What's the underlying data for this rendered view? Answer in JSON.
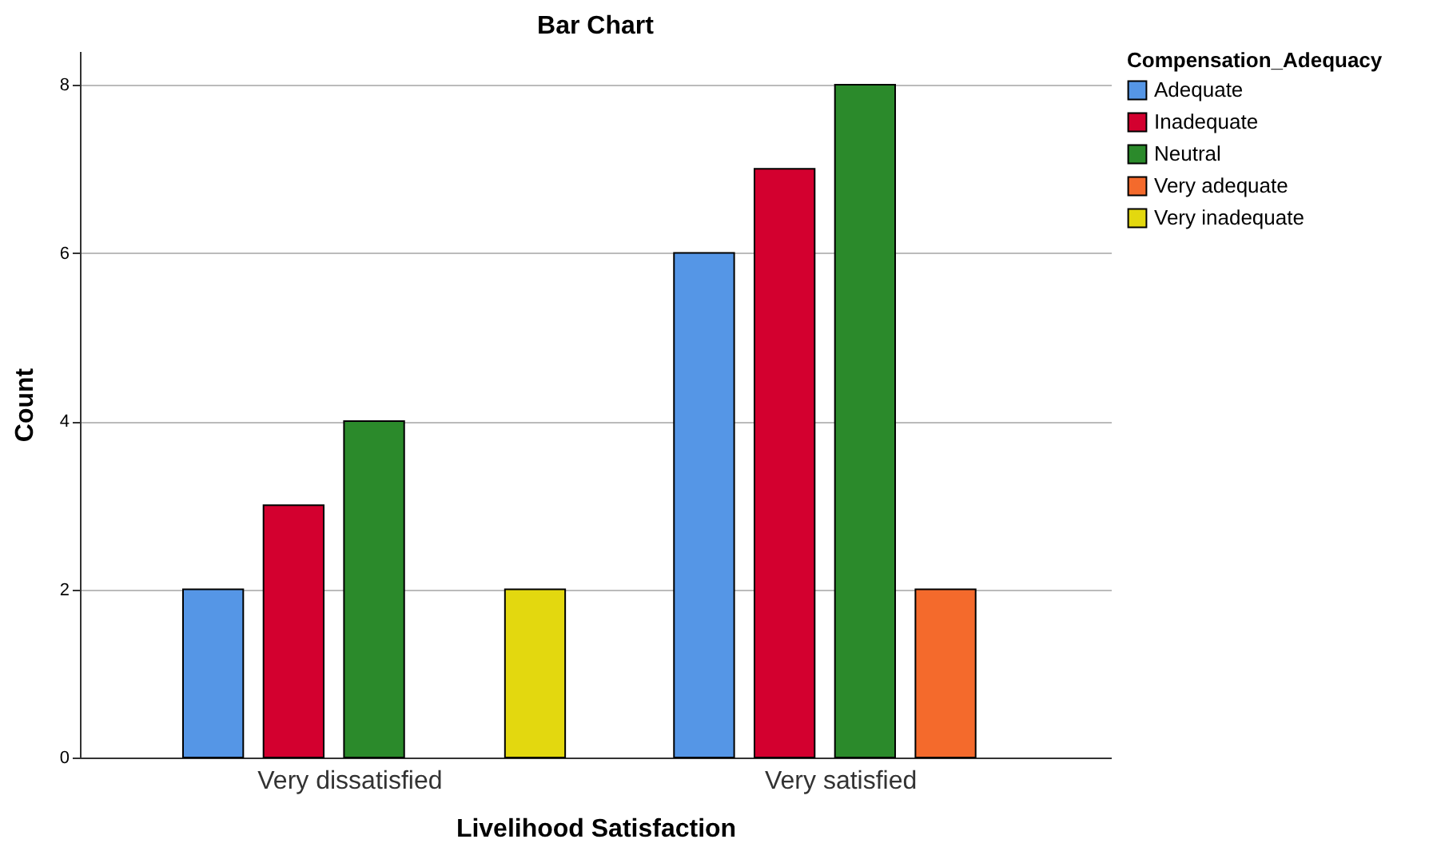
{
  "chart_data": {
    "type": "bar",
    "title": "Bar Chart",
    "xlabel": "Livelihood  Satisfaction",
    "ylabel": "Count",
    "legend_title": "Compensation_Adequacy",
    "categories": [
      "Very dissatisfied",
      "Very satisfied"
    ],
    "series": [
      {
        "name": "Adequate",
        "color": "#5596e6",
        "values": [
          2,
          6
        ]
      },
      {
        "name": "Inadequate",
        "color": "#d3002f",
        "values": [
          3,
          7
        ]
      },
      {
        "name": "Neutral",
        "color": "#2b8a2b",
        "values": [
          4,
          8
        ]
      },
      {
        "name": "Very adequate",
        "color": "#f46a2c",
        "values": [
          null,
          2
        ]
      },
      {
        "name": "Very inadequate",
        "color": "#e3d80f",
        "values": [
          2,
          null
        ]
      }
    ],
    "ylim": [
      0,
      8.4
    ],
    "yticks": [
      0,
      2,
      4,
      6,
      8
    ],
    "grid": "y",
    "legend": "top right"
  }
}
